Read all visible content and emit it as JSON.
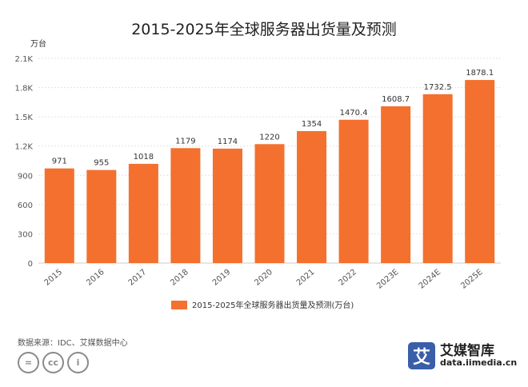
{
  "chart_data": {
    "type": "bar",
    "title": "2015-2025年全球服务器出货量及预测",
    "ylabel": "万台",
    "xlabel": "",
    "categories": [
      "2015",
      "2016",
      "2017",
      "2018",
      "2019",
      "2020",
      "2021",
      "2022",
      "2023E",
      "2024E",
      "2025E"
    ],
    "values": [
      971,
      955,
      1018,
      1179,
      1174,
      1220,
      1354,
      1470.4,
      1608.7,
      1732.5,
      1878.1
    ],
    "value_labels": [
      "971",
      "955",
      "1018",
      "1179",
      "1174",
      "1220",
      "1354",
      "1470.4",
      "1608.7",
      "1732.5",
      "1878.1"
    ],
    "ylim": [
      0,
      2100
    ],
    "yticks": [
      0,
      300,
      600,
      900,
      1200,
      1500,
      1800,
      2100
    ],
    "ytick_labels": [
      "0",
      "300",
      "600",
      "900",
      "1.2K",
      "1.5K",
      "1.8K",
      "2.1K"
    ],
    "series": [
      {
        "name": "2015-2025年全球服务器出货量及预测(万台)",
        "color": "#f4702e"
      }
    ],
    "legend_position": "bottom",
    "grid": true
  },
  "source_note": "数据来源：IDC、艾媒数据中心",
  "license_icons": [
    "=",
    "cc",
    "i"
  ],
  "brand": {
    "logo_char": "艾",
    "name": "艾媒智库",
    "url": "data.iimedia.cn"
  }
}
